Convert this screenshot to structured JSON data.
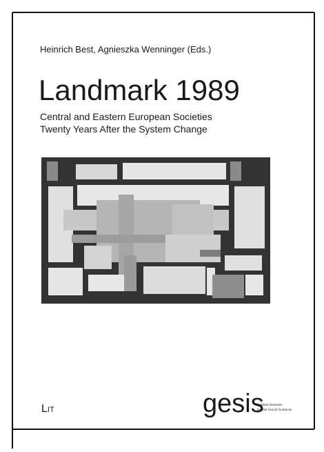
{
  "cover": {
    "editors": "Heinrich Best, Agnieszka Wenninger (Eds.)",
    "title": "Landmark 1989",
    "subtitle_lines": [
      "Central and Eastern European Societies",
      "Twenty Years After the System Change"
    ],
    "publisher": "Lit",
    "institute_logo": "gesis",
    "institute_lines": [
      "Leibniz Institute",
      "for the Social Sciences"
    ]
  }
}
